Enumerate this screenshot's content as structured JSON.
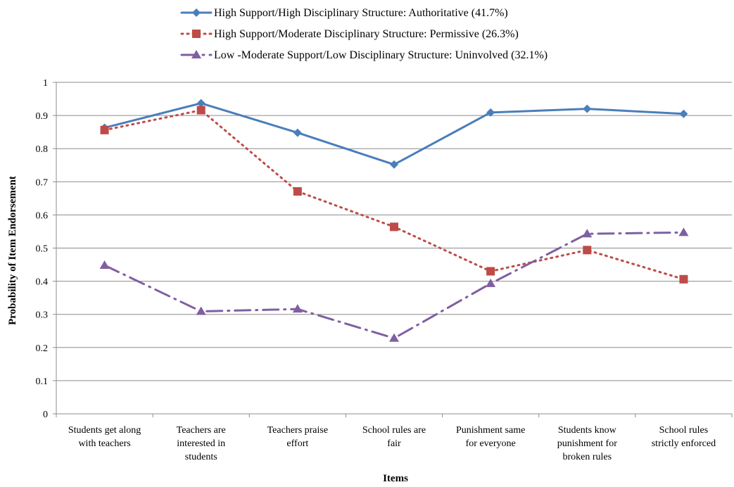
{
  "chart_data": {
    "type": "line",
    "categories": [
      [
        "Students get along",
        "with teachers"
      ],
      [
        "Teachers are",
        "interested in",
        "students"
      ],
      [
        "Teachers praise",
        "effort"
      ],
      [
        "School rules are",
        "fair"
      ],
      [
        "Punishment same",
        "for everyone"
      ],
      [
        "Students know",
        "punishment for",
        "broken rules"
      ],
      [
        "School rules",
        "strictly enforced"
      ]
    ],
    "series": [
      {
        "name": "High Support/High Disciplinary Structure: Authoritative (41.7%)",
        "values": [
          0.863,
          0.937,
          0.848,
          0.752,
          0.909,
          0.92,
          0.905
        ],
        "color": "#4a7ebb",
        "line_style": "solid",
        "marker": "diamond"
      },
      {
        "name": "High Support/Moderate Disciplinary Structure: Permissive (26.3%)",
        "values": [
          0.856,
          0.916,
          0.671,
          0.564,
          0.43,
          0.494,
          0.406
        ],
        "color": "#be4b48",
        "line_style": "dotted",
        "marker": "square"
      },
      {
        "name": "Low -Moderate Support/Low Disciplinary Structure: Uninvolved (32.1%)",
        "values": [
          0.448,
          0.309,
          0.316,
          0.228,
          0.393,
          0.543,
          0.547
        ],
        "color": "#7f5fa1",
        "line_style": "long-dash-dot",
        "marker": "triangle"
      }
    ],
    "y_ticks": [
      "0",
      "0.1",
      "0.2",
      "0.3",
      "0.4",
      "0.5",
      "0.6",
      "0.7",
      "0.8",
      "0.9",
      "1"
    ],
    "ylim": [
      0,
      1
    ],
    "xlabel": "Items",
    "ylabel": "Probability of Item Endorsement",
    "grid": "horizontal",
    "legend_position": "top"
  }
}
